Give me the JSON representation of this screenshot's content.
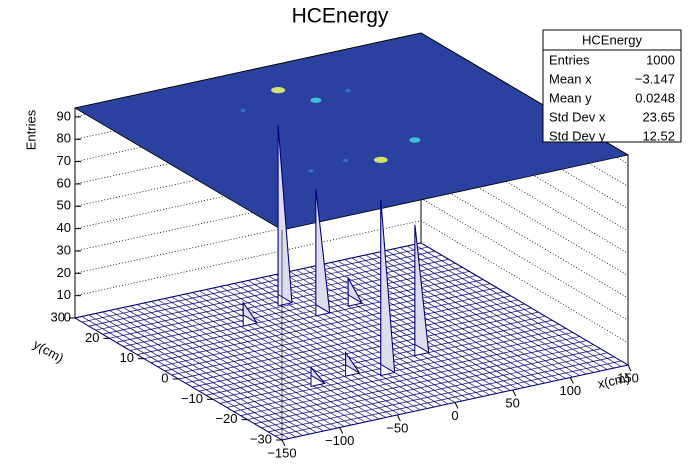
{
  "chart_data": {
    "type": "surface",
    "title": "HCEnergy",
    "x_label": "x(cm)",
    "y_label": "y(cm)",
    "z_label": "Entries",
    "x": [
      -2,
      11,
      -46,
      42,
      31,
      -12,
      -35,
      -68
    ],
    "y": [
      20.6,
      14,
      16,
      15,
      -8,
      -12.5,
      -10,
      -11
    ],
    "z": [
      78,
      54,
      8,
      10,
      56,
      76,
      8,
      6
    ],
    "xlim": [
      -150,
      150
    ],
    "ylim": [
      -30,
      30
    ],
    "zlim": [
      0,
      94
    ],
    "xticks": [
      {
        "value": -150,
        "label": "−150"
      },
      {
        "value": -100,
        "label": "−100"
      },
      {
        "value": -50,
        "label": "−50"
      },
      0,
      50,
      100,
      150
    ],
    "yticks": [
      {
        "value": -30,
        "label": "−30"
      },
      {
        "value": -20,
        "label": "−20"
      },
      {
        "value": -10,
        "label": "−10"
      },
      0,
      10,
      20,
      30
    ],
    "zticks": [
      0,
      10,
      20,
      30,
      40,
      50,
      60,
      70,
      80,
      90
    ],
    "grid": true,
    "color": "#000080",
    "plane_color": "#2a41a0",
    "stats": {
      "title": "HCEnergy",
      "rows": [
        [
          "Entries",
          "1000"
        ],
        [
          "Mean x",
          "−3.147"
        ],
        [
          "Mean y",
          "0.0248"
        ],
        [
          "Std Dev x",
          "23.65"
        ],
        [
          "Std Dev y",
          "12.52"
        ]
      ]
    }
  }
}
